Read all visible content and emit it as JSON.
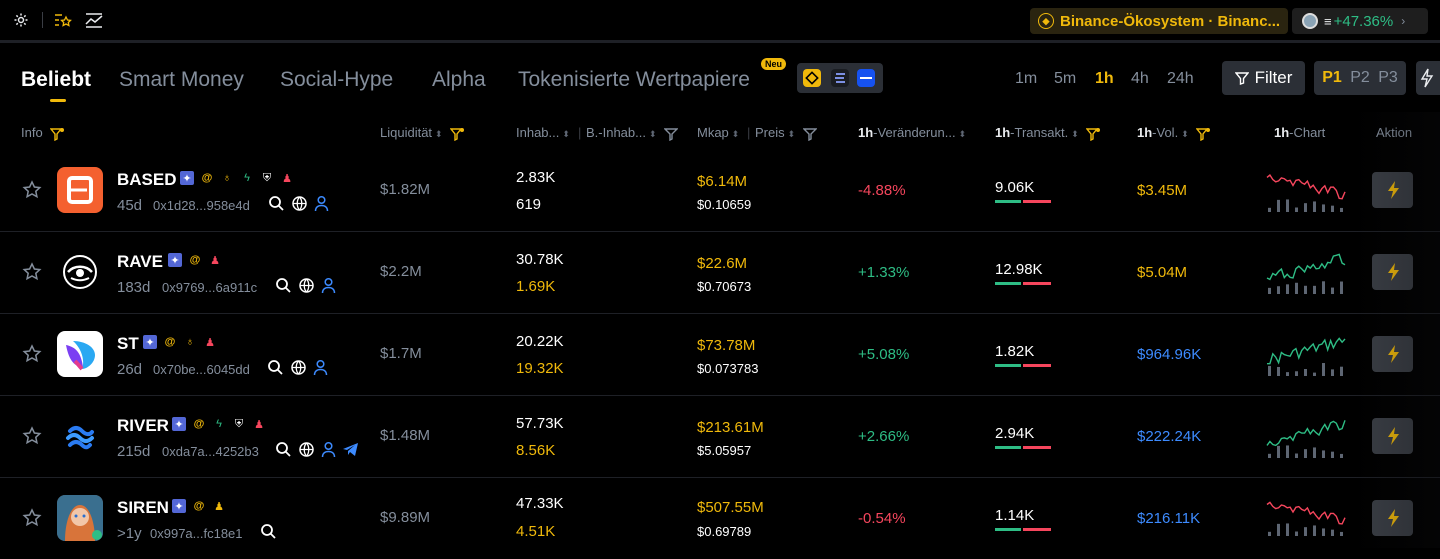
{
  "topbar": {
    "icons": [
      "gear-icon",
      "star-list-icon",
      "chart-trend-icon"
    ],
    "ecosystem_label": "Binance-Ökosystem · Binanc...",
    "ticker_symbol": "≡",
    "ticker_change": "+47.36%"
  },
  "tabs": [
    {
      "label": "Beliebt",
      "active": true
    },
    {
      "label": "Smart Money"
    },
    {
      "label": "Social-Hype"
    },
    {
      "label": "Alpha"
    },
    {
      "label": "Tokenisierte Wertpapiere",
      "badge": "Neu"
    }
  ],
  "chains": [
    "bnb-chain-icon",
    "solana-chain-icon",
    "base-chain-icon"
  ],
  "timeframes": [
    "1m",
    "5m",
    "1h",
    "4h",
    "24h"
  ],
  "active_timeframe": "1h",
  "filter_label": "Filter",
  "pages": [
    "P1",
    "P2",
    "P3"
  ],
  "columns": {
    "info": "Info",
    "liquidity": "Liquidität",
    "holders": "Inhab...",
    "b_holders": "B.-Inhab...",
    "mcap": "Mkap",
    "price": "Preis",
    "change_prefix": "1h",
    "change": "-Veränderun...",
    "tx_prefix": "1h",
    "tx": "-Transakt.",
    "vol_prefix": "1h",
    "vol": "-Vol.",
    "chart_prefix": "1h",
    "chart": "-Chart",
    "action": "Aktion"
  },
  "rows": [
    {
      "name": "BASED",
      "age": "45d",
      "address": "0x1d28...958e4d",
      "liquidity": "$1.82M",
      "holders": "2.83K",
      "b_holders": "619",
      "mcap": "$6.14M",
      "price": "$0.10659",
      "change": "-4.88%",
      "change_dir": "down",
      "tx": "9.06K",
      "volume": "$3.45M",
      "volume_color": "yellow",
      "chart_trend": "down",
      "chart_color": "#f6465d"
    },
    {
      "name": "RAVE",
      "age": "183d",
      "address": "0x9769...6a911c",
      "liquidity": "$2.2M",
      "holders": "30.78K",
      "b_holders": "1.69K",
      "mcap": "$22.6M",
      "price": "$0.70673",
      "change": "+1.33%",
      "change_dir": "up",
      "tx": "12.98K",
      "volume": "$5.04M",
      "volume_color": "yellow",
      "chart_trend": "up",
      "chart_color": "#2ebd85"
    },
    {
      "name": "ST",
      "age": "26d",
      "address": "0x70be...6045dd",
      "liquidity": "$1.7M",
      "holders": "20.22K",
      "b_holders": "19.32K",
      "mcap": "$73.78M",
      "price": "$0.073783",
      "change": "+5.08%",
      "change_dir": "up",
      "tx": "1.82K",
      "volume": "$964.96K",
      "volume_color": "blue",
      "chart_trend": "up",
      "chart_color": "#2ebd85"
    },
    {
      "name": "RIVER",
      "age": "215d",
      "address": "0xda7a...4252b3",
      "liquidity": "$1.48M",
      "holders": "57.73K",
      "b_holders": "8.56K",
      "mcap": "$213.61M",
      "price": "$5.05957",
      "change": "+2.66%",
      "change_dir": "up",
      "tx": "2.94K",
      "volume": "$222.24K",
      "volume_color": "blue",
      "chart_trend": "up",
      "chart_color": "#2ebd85"
    },
    {
      "name": "SIREN",
      "age": ">1y",
      "address": "0x997a...fc18e1",
      "liquidity": "$9.89M",
      "holders": "47.33K",
      "b_holders": "4.51K",
      "mcap": "$507.55M",
      "price": "$0.69789",
      "change": "-0.54%",
      "change_dir": "down",
      "tx": "1.14K",
      "volume": "$216.11K",
      "volume_color": "blue",
      "chart_trend": "down",
      "chart_color": "#f6465d"
    }
  ]
}
